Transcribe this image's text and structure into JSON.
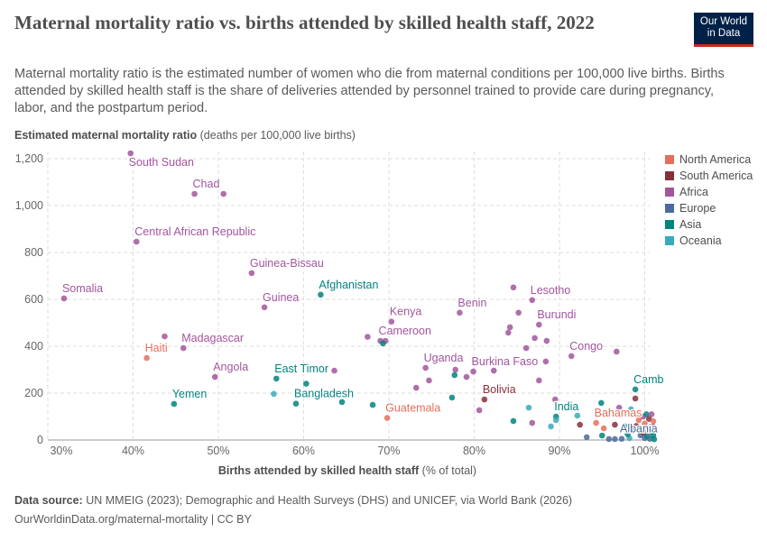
{
  "title": "Maternal mortality ratio vs. births attended by skilled health staff, 2022",
  "subtitle": "Maternal mortality ratio is the estimated number of women who die from maternal conditions per 100,000 live births. Births attended by skilled health staff is the share of deliveries attended by personnel trained to provide care during pregnancy, labor, and the postpartum period.",
  "logo": {
    "line1": "Our World",
    "line2": "in Data"
  },
  "footer": {
    "source_label": "Data source:",
    "source_text": "UN MMEIG (2023); Demographic and Health Surveys (DHS) and UNICEF, via World Bank (2026)",
    "url_license": "OurWorldinData.org/maternal-mortality | CC BY"
  },
  "chart_data": {
    "type": "scatter",
    "title": "Maternal mortality ratio vs. births attended by skilled health staff, 2022",
    "ylabel_bold": "Estimated maternal mortality ratio",
    "ylabel_unit": "(deaths per 100,000 live births)",
    "xlabel_bold": "Births attended by skilled health staff",
    "xlabel_unit": "(% of total)",
    "xlim": [
      30,
      101.5
    ],
    "ylim": [
      0,
      1200
    ],
    "xticks": [
      "30%",
      "40%",
      "50%",
      "60%",
      "70%",
      "80%",
      "90%",
      "100%"
    ],
    "xtick_values": [
      30,
      40,
      50,
      60,
      70,
      80,
      90,
      100
    ],
    "yticks": [
      "0",
      "200",
      "400",
      "600",
      "800",
      "1,000",
      "1,200"
    ],
    "ytick_values": [
      0,
      200,
      400,
      600,
      800,
      1000,
      1200
    ],
    "grid": true,
    "legend_placement": "right",
    "legend": [
      {
        "name": "North America",
        "color": "#E56E5A"
      },
      {
        "name": "South America",
        "color": "#883039"
      },
      {
        "name": "Africa",
        "color": "#A2559C"
      },
      {
        "name": "Europe",
        "color": "#4C6A9C"
      },
      {
        "name": "Asia",
        "color": "#00847E"
      },
      {
        "name": "Oceania",
        "color": "#38AABA"
      }
    ],
    "points": [
      {
        "x": 39.7,
        "y": 1223,
        "r": "Africa",
        "label": "South Sudan"
      },
      {
        "x": 47.2,
        "y": 1050,
        "r": "Africa",
        "label": "Chad"
      },
      {
        "x": 50.6,
        "y": 1050,
        "r": "Africa"
      },
      {
        "x": 40.4,
        "y": 846,
        "r": "Africa",
        "label": "Central African Republic"
      },
      {
        "x": 31.9,
        "y": 604,
        "r": "Africa",
        "label": "Somalia"
      },
      {
        "x": 53.9,
        "y": 712,
        "r": "Africa",
        "label": "Guinea-Bissau"
      },
      {
        "x": 55.4,
        "y": 566,
        "r": "Africa",
        "label": "Guinea"
      },
      {
        "x": 62.0,
        "y": 620,
        "r": "Asia",
        "label": "Afghanistan"
      },
      {
        "x": 43.7,
        "y": 442,
        "r": "Africa"
      },
      {
        "x": 45.9,
        "y": 392,
        "r": "Africa",
        "label": "Madagascar"
      },
      {
        "x": 41.6,
        "y": 350,
        "r": "North America",
        "label": "Haiti"
      },
      {
        "x": 49.6,
        "y": 269,
        "r": "Africa",
        "label": "Angola"
      },
      {
        "x": 44.8,
        "y": 154,
        "r": "Asia",
        "label": "Yemen"
      },
      {
        "x": 56.8,
        "y": 262,
        "r": "Asia",
        "label": "East Timor"
      },
      {
        "x": 63.6,
        "y": 296,
        "r": "Africa"
      },
      {
        "x": 60.3,
        "y": 240,
        "r": "Asia"
      },
      {
        "x": 56.5,
        "y": 197,
        "r": "Oceania"
      },
      {
        "x": 59.1,
        "y": 155,
        "r": "Asia",
        "label": "Bangladesh"
      },
      {
        "x": 64.5,
        "y": 162,
        "r": "Asia"
      },
      {
        "x": 68.1,
        "y": 150,
        "r": "Asia"
      },
      {
        "x": 69.8,
        "y": 94,
        "r": "North America",
        "label": "Guatemala"
      },
      {
        "x": 70.3,
        "y": 505,
        "r": "Africa",
        "label": "Kenya"
      },
      {
        "x": 67.5,
        "y": 440,
        "r": "Africa"
      },
      {
        "x": 69.0,
        "y": 423,
        "r": "Africa",
        "label": "Cameroon"
      },
      {
        "x": 69.6,
        "y": 423,
        "r": "Africa"
      },
      {
        "x": 69.3,
        "y": 412,
        "r": "Asia"
      },
      {
        "x": 78.3,
        "y": 543,
        "r": "Africa",
        "label": "Benin"
      },
      {
        "x": 84.6,
        "y": 651,
        "r": "Africa"
      },
      {
        "x": 85.2,
        "y": 543,
        "r": "Africa"
      },
      {
        "x": 84.2,
        "y": 481,
        "r": "Africa"
      },
      {
        "x": 84.0,
        "y": 458,
        "r": "Africa"
      },
      {
        "x": 74.3,
        "y": 308,
        "r": "Africa",
        "label": "Uganda"
      },
      {
        "x": 74.7,
        "y": 254,
        "r": "Africa"
      },
      {
        "x": 73.2,
        "y": 223,
        "r": "Africa"
      },
      {
        "x": 77.8,
        "y": 300,
        "r": "Africa"
      },
      {
        "x": 77.7,
        "y": 277,
        "r": "Asia"
      },
      {
        "x": 79.1,
        "y": 269,
        "r": "Africa"
      },
      {
        "x": 79.9,
        "y": 292,
        "r": "Africa",
        "label": "Burkina Faso"
      },
      {
        "x": 82.3,
        "y": 296,
        "r": "Africa"
      },
      {
        "x": 77.4,
        "y": 181,
        "r": "Asia"
      },
      {
        "x": 81.2,
        "y": 173,
        "r": "South America",
        "label": "Bolivia"
      },
      {
        "x": 80.6,
        "y": 127,
        "r": "Africa"
      },
      {
        "x": 84.6,
        "y": 81,
        "r": "Asia"
      },
      {
        "x": 86.8,
        "y": 597,
        "r": "Africa",
        "label": "Lesotho"
      },
      {
        "x": 87.6,
        "y": 492,
        "r": "Africa",
        "label": "Burundi"
      },
      {
        "x": 87.1,
        "y": 435,
        "r": "Africa"
      },
      {
        "x": 88.5,
        "y": 423,
        "r": "Africa"
      },
      {
        "x": 86.1,
        "y": 392,
        "r": "Africa"
      },
      {
        "x": 91.4,
        "y": 358,
        "r": "Africa",
        "label": "Congo"
      },
      {
        "x": 96.7,
        "y": 377,
        "r": "Africa"
      },
      {
        "x": 88.4,
        "y": 335,
        "r": "Africa"
      },
      {
        "x": 87.6,
        "y": 254,
        "r": "Africa"
      },
      {
        "x": 98.9,
        "y": 216,
        "r": "Asia",
        "label": "Cambodia"
      },
      {
        "x": 98.9,
        "y": 177,
        "r": "South America"
      },
      {
        "x": 94.9,
        "y": 158,
        "r": "Asia"
      },
      {
        "x": 97.0,
        "y": 138,
        "r": "Africa"
      },
      {
        "x": 89.5,
        "y": 173,
        "r": "Africa"
      },
      {
        "x": 86.4,
        "y": 138,
        "r": "Oceania"
      },
      {
        "x": 89.6,
        "y": 100,
        "r": "Asia",
        "label": "India"
      },
      {
        "x": 89.6,
        "y": 85,
        "r": "Oceania"
      },
      {
        "x": 89.0,
        "y": 58,
        "r": "Oceania"
      },
      {
        "x": 86.8,
        "y": 73,
        "r": "Africa"
      },
      {
        "x": 92.1,
        "y": 104,
        "r": "Oceania"
      },
      {
        "x": 92.4,
        "y": 65,
        "r": "South America"
      },
      {
        "x": 94.3,
        "y": 73,
        "r": "North America",
        "label": "Bahamas"
      },
      {
        "x": 95.2,
        "y": 50,
        "r": "North America"
      },
      {
        "x": 96.5,
        "y": 65,
        "r": "South America"
      },
      {
        "x": 98.4,
        "y": 131,
        "r": "Oceania"
      },
      {
        "x": 93.2,
        "y": 12,
        "r": "Europe"
      },
      {
        "x": 95.0,
        "y": 19,
        "r": "Asia"
      },
      {
        "x": 95.8,
        "y": 4,
        "r": "Europe"
      },
      {
        "x": 96.5,
        "y": 4,
        "r": "Europe"
      },
      {
        "x": 97.3,
        "y": 5,
        "r": "Europe",
        "label": "Albania"
      },
      {
        "x": 98.2,
        "y": 8,
        "r": "Oceania"
      },
      {
        "x": 98.6,
        "y": 40,
        "r": "Asia"
      },
      {
        "x": 99.0,
        "y": 60,
        "r": "South America"
      },
      {
        "x": 99.3,
        "y": 85,
        "r": "North America"
      },
      {
        "x": 99.5,
        "y": 20,
        "r": "Europe"
      },
      {
        "x": 99.7,
        "y": 45,
        "r": "Asia"
      },
      {
        "x": 99.8,
        "y": 100,
        "r": "Africa"
      },
      {
        "x": 99.9,
        "y": 30,
        "r": "South America"
      },
      {
        "x": 100.0,
        "y": 8,
        "r": "Europe"
      },
      {
        "x": 100.0,
        "y": 70,
        "r": "North America"
      },
      {
        "x": 100.2,
        "y": 110,
        "r": "Asia"
      },
      {
        "x": 100.3,
        "y": 15,
        "r": "Asia"
      },
      {
        "x": 100.4,
        "y": 50,
        "r": "Oceania"
      },
      {
        "x": 100.5,
        "y": 90,
        "r": "South America"
      },
      {
        "x": 100.6,
        "y": 5,
        "r": "Europe"
      },
      {
        "x": 100.7,
        "y": 35,
        "r": "Asia"
      },
      {
        "x": 100.8,
        "y": 110,
        "r": "Africa"
      },
      {
        "x": 100.9,
        "y": 60,
        "r": "Africa"
      },
      {
        "x": 101.0,
        "y": 20,
        "r": "Asia"
      },
      {
        "x": 101.0,
        "y": 80,
        "r": "North America"
      },
      {
        "x": 101.1,
        "y": 3,
        "r": "Asia"
      },
      {
        "x": 101.2,
        "y": 45,
        "r": "Asia"
      },
      {
        "x": 98.0,
        "y": 25,
        "r": "Asia"
      },
      {
        "x": 97.6,
        "y": 60,
        "r": "Asia"
      }
    ]
  }
}
